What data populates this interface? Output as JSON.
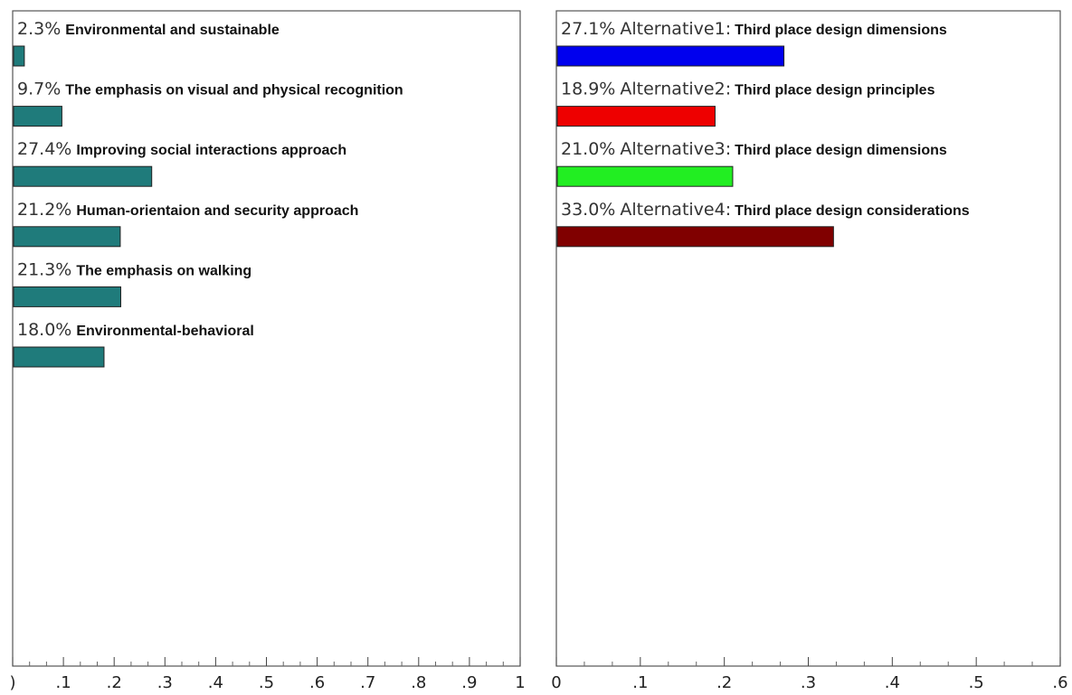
{
  "chart_data": [
    {
      "type": "bar",
      "orientation": "horizontal",
      "categories": [
        "Environmental and sustainable",
        "The emphasis on visual and physical recognition",
        "Improving social interactions approach",
        "Human-orientaion and security approach",
        "The emphasis on walking",
        "Environmental-behavioral"
      ],
      "values": [
        0.023,
        0.097,
        0.274,
        0.212,
        0.213,
        0.18
      ],
      "value_labels": [
        "2.3%",
        "9.7%",
        "27.4%",
        "21.2%",
        "21.3%",
        "18.0%"
      ],
      "prefixes": [
        "",
        "",
        "",
        "",
        "",
        ""
      ],
      "colors": [
        "#1f7b7b",
        "#1f7b7b",
        "#1f7b7b",
        "#1f7b7b",
        "#1f7b7b",
        "#1f7b7b"
      ],
      "xlim": [
        0,
        1
      ],
      "tick_labels": [
        ")",
        ".1",
        ".2",
        ".3",
        ".4",
        ".5",
        ".6",
        ".7",
        ".8",
        ".9",
        "1"
      ],
      "grid": false
    },
    {
      "type": "bar",
      "orientation": "horizontal",
      "categories": [
        "Third place design dimensions",
        "Third place design principles",
        "Third place design dimensions",
        "Third place design considerations"
      ],
      "values": [
        0.271,
        0.189,
        0.21,
        0.33
      ],
      "value_labels": [
        "27.1%",
        "18.9%",
        "21.0%",
        "33.0%"
      ],
      "prefixes": [
        "Alternative1:",
        "Alternative2:",
        "Alternative3:",
        "Alternative4:"
      ],
      "colors": [
        "#0000ee",
        "#ee0000",
        "#22ee22",
        "#800000"
      ],
      "xlim": [
        0,
        0.6
      ],
      "tick_labels": [
        "0",
        ".1",
        ".2",
        ".3",
        ".4",
        ".5",
        ".6"
      ],
      "grid": false
    }
  ]
}
